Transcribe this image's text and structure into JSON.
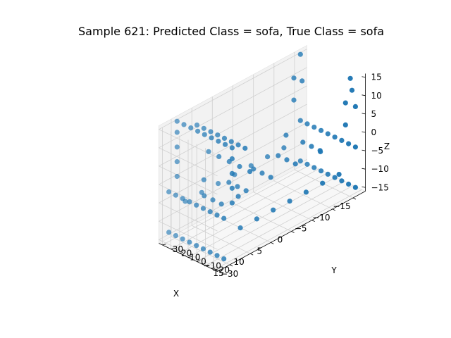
{
  "chart_data": {
    "type": "scatter",
    "projection": "3d",
    "title": "Sample 621: Predicted Class = sofa, True Class = sofa",
    "xlabel": "X",
    "ylabel": "Y",
    "zlabel": "Z",
    "xlim": [
      -18,
      18
    ],
    "ylim": [
      -34,
      34
    ],
    "zlim": [
      -16,
      16
    ],
    "x_ticks": [
      "−15",
      "−10",
      "−5",
      "0",
      "5",
      "10",
      "15"
    ],
    "y_ticks": [
      "−30",
      "−20",
      "−10",
      "0",
      "10",
      "20",
      "30"
    ],
    "z_ticks": [
      "−15",
      "−10",
      "−5",
      "0",
      "5",
      "10",
      "15"
    ],
    "grid": true,
    "marker_color": "#1f77b4",
    "series": [
      {
        "points": [
          [
            -16,
            -32,
            -14
          ],
          [
            -16,
            -24,
            -14
          ],
          [
            -16,
            -16,
            -14
          ],
          [
            -16,
            -8,
            -14
          ],
          [
            -16,
            0,
            -14
          ],
          [
            -16,
            8,
            -14
          ],
          [
            -16,
            16,
            -14
          ],
          [
            -16,
            24,
            -14
          ],
          [
            -16,
            32,
            -14
          ],
          [
            16,
            -32,
            -14
          ],
          [
            16,
            -24,
            -14
          ],
          [
            16,
            -16,
            -14
          ],
          [
            16,
            -8,
            -14
          ],
          [
            16,
            0,
            -14
          ],
          [
            16,
            8,
            -14
          ],
          [
            16,
            16,
            -14
          ],
          [
            16,
            24,
            -14
          ],
          [
            16,
            32,
            -14
          ],
          [
            -16,
            -32,
            -3
          ],
          [
            -16,
            -24,
            -3
          ],
          [
            -16,
            -16,
            -3
          ],
          [
            -16,
            -8,
            -3
          ],
          [
            -16,
            0,
            -3
          ],
          [
            -16,
            8,
            -3
          ],
          [
            -16,
            16,
            -3
          ],
          [
            -16,
            24,
            -3
          ],
          [
            -16,
            32,
            -3
          ],
          [
            16,
            -32,
            -3
          ],
          [
            16,
            -24,
            -3
          ],
          [
            16,
            -16,
            -3
          ],
          [
            16,
            -8,
            -3
          ],
          [
            16,
            0,
            -3
          ],
          [
            16,
            8,
            -3
          ],
          [
            16,
            16,
            -3
          ],
          [
            16,
            24,
            -3
          ],
          [
            16,
            32,
            -3
          ],
          [
            -12,
            -32,
            -8
          ],
          [
            -8,
            -32,
            -8
          ],
          [
            -4,
            -32,
            -8
          ],
          [
            0,
            -32,
            -8
          ],
          [
            4,
            -32,
            -8
          ],
          [
            8,
            -32,
            -8
          ],
          [
            12,
            -32,
            -8
          ],
          [
            -12,
            32,
            -8
          ],
          [
            -8,
            32,
            -8
          ],
          [
            -4,
            32,
            -8
          ],
          [
            0,
            32,
            -8
          ],
          [
            4,
            32,
            -8
          ],
          [
            8,
            32,
            -8
          ],
          [
            12,
            32,
            -8
          ],
          [
            -12,
            -10,
            -4
          ],
          [
            -6,
            -10,
            -4
          ],
          [
            0,
            -10,
            -4
          ],
          [
            6,
            -10,
            -4
          ],
          [
            12,
            -10,
            -4
          ],
          [
            -12,
            0,
            -4
          ],
          [
            -6,
            0,
            -4
          ],
          [
            0,
            0,
            -4
          ],
          [
            6,
            0,
            -4
          ],
          [
            12,
            0,
            -4
          ],
          [
            -12,
            10,
            -4
          ],
          [
            -6,
            10,
            -4
          ],
          [
            0,
            10,
            -4
          ],
          [
            6,
            10,
            -4
          ],
          [
            12,
            10,
            -4
          ],
          [
            14,
            -32,
            0
          ],
          [
            14,
            -32,
            4
          ],
          [
            14,
            -32,
            8
          ],
          [
            14,
            -32,
            12
          ],
          [
            14,
            -32,
            15
          ],
          [
            14,
            -24,
            15
          ],
          [
            14,
            -16,
            15
          ],
          [
            14,
            -8,
            15
          ],
          [
            14,
            0,
            15
          ],
          [
            14,
            8,
            15
          ],
          [
            14,
            16,
            15
          ],
          [
            14,
            24,
            15
          ],
          [
            14,
            32,
            15
          ],
          [
            14,
            32,
            0
          ],
          [
            14,
            32,
            4
          ],
          [
            14,
            32,
            8
          ],
          [
            14,
            32,
            12
          ],
          [
            10,
            -28,
            12
          ],
          [
            10,
            -20,
            12
          ],
          [
            10,
            -12,
            12
          ],
          [
            10,
            -4,
            12
          ],
          [
            10,
            4,
            12
          ],
          [
            10,
            12,
            12
          ],
          [
            10,
            20,
            12
          ],
          [
            10,
            28,
            12
          ],
          [
            8,
            -24,
            4
          ],
          [
            8,
            -12,
            4
          ],
          [
            8,
            0,
            4
          ],
          [
            8,
            12,
            4
          ],
          [
            8,
            24,
            4
          ],
          [
            -16,
            -32,
            8
          ],
          [
            -16,
            -28,
            12
          ],
          [
            -16,
            -26,
            15
          ],
          [
            -16,
            30,
            8
          ],
          [
            -16,
            32,
            15
          ],
          [
            -14,
            -30,
            4
          ],
          [
            -14,
            30,
            4
          ],
          [
            -14,
            -30,
            10
          ],
          [
            -14,
            30,
            10
          ],
          [
            -10,
            -20,
            -2
          ],
          [
            -10,
            20,
            -2
          ],
          [
            10,
            -20,
            -2
          ],
          [
            10,
            20,
            -2
          ]
        ]
      }
    ]
  }
}
